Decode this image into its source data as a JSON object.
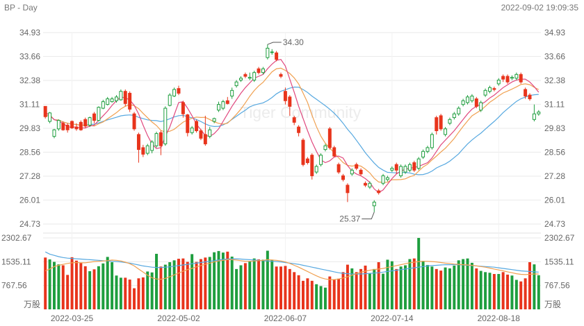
{
  "header": {
    "title": "BP - Day",
    "timestamp": "2022-09-02 19:09:35"
  },
  "watermark": "Tiger Community",
  "colors": {
    "up": "#1e9e3e",
    "down": "#e8341c",
    "ma5": "#e0487e",
    "ma10": "#f0a050",
    "ma20": "#56a8e0",
    "vol_avg1": "#f0a050",
    "vol_avg2": "#56a8e0"
  },
  "chart_data": [
    {
      "type": "candlestick",
      "title": "BP - Day",
      "y_ticks": [
        "34.93",
        "33.66",
        "32.38",
        "31.11",
        "29.83",
        "28.56",
        "27.28",
        "26.01",
        "24.73"
      ],
      "ylim": [
        24.73,
        34.93
      ],
      "x_ticks": [
        "2022-03-25",
        "2022-05-02",
        "2022-06-07",
        "2022-07-14",
        "2022-08-18"
      ],
      "x_tick_index": [
        6,
        30,
        54,
        78,
        102
      ],
      "annotations": [
        {
          "text": "34.30",
          "type": "high",
          "index": 50,
          "value": 34.3
        },
        {
          "text": "25.37",
          "type": "low",
          "index": 74,
          "value": 25.37
        }
      ],
      "candles": [
        [
          31.0,
          30.45,
          30.95,
          30.35
        ],
        [
          30.2,
          30.65,
          30.7,
          30.1
        ],
        [
          29.4,
          29.75,
          29.8,
          29.3
        ],
        [
          29.8,
          30.25,
          30.3,
          29.7
        ],
        [
          30.1,
          29.75,
          30.2,
          29.7
        ],
        [
          30.0,
          29.75,
          30.1,
          29.6
        ],
        [
          30.2,
          29.85,
          30.25,
          29.8
        ],
        [
          29.9,
          29.8,
          30.1,
          29.7
        ],
        [
          30.15,
          29.75,
          30.25,
          29.7
        ],
        [
          30.3,
          29.95,
          30.4,
          29.85
        ],
        [
          30.0,
          30.4,
          30.45,
          29.9
        ],
        [
          30.6,
          30.25,
          30.7,
          30.1
        ],
        [
          30.25,
          30.95,
          31.0,
          30.2
        ],
        [
          30.9,
          31.25,
          31.35,
          30.85
        ],
        [
          31.1,
          31.4,
          31.5,
          31.05
        ],
        [
          31.25,
          31.4,
          31.5,
          31.2
        ],
        [
          31.3,
          31.5,
          31.6,
          31.2
        ],
        [
          31.35,
          31.8,
          31.9,
          31.3
        ],
        [
          31.8,
          31.15,
          31.9,
          31.0
        ],
        [
          31.7,
          30.85,
          31.8,
          30.7
        ],
        [
          30.6,
          29.8,
          30.7,
          29.7
        ],
        [
          29.5,
          28.7,
          29.6,
          28.0
        ],
        [
          28.8,
          28.45,
          28.95,
          28.3
        ],
        [
          28.5,
          28.9,
          29.0,
          28.4
        ],
        [
          28.65,
          29.1,
          29.2,
          28.5
        ],
        [
          28.9,
          29.55,
          29.65,
          28.8
        ],
        [
          29.6,
          28.9,
          29.7,
          28.4
        ],
        [
          29.0,
          30.9,
          31.0,
          28.9
        ],
        [
          31.05,
          31.6,
          31.7,
          31.0
        ],
        [
          31.55,
          31.9,
          32.0,
          31.5
        ],
        [
          31.95,
          31.7,
          32.1,
          31.6
        ],
        [
          31.2,
          30.6,
          31.3,
          30.4
        ],
        [
          30.55,
          29.6,
          30.6,
          29.4
        ],
        [
          29.6,
          29.85,
          29.95,
          29.5
        ],
        [
          30.2,
          29.7,
          30.3,
          29.6
        ],
        [
          29.7,
          29.3,
          29.8,
          29.2
        ],
        [
          29.5,
          29.0,
          30.5,
          28.9
        ],
        [
          29.4,
          29.75,
          29.9,
          29.3
        ],
        [
          30.2,
          30.35,
          30.4,
          30.1
        ],
        [
          30.8,
          31.1,
          31.25,
          30.7
        ],
        [
          30.9,
          31.25,
          31.35,
          30.8
        ],
        [
          31.3,
          31.15,
          31.5,
          31.1
        ],
        [
          31.55,
          31.85,
          32.0,
          31.4
        ],
        [
          32.1,
          32.3,
          32.4,
          32.0
        ],
        [
          32.4,
          32.5,
          32.6,
          32.3
        ],
        [
          32.7,
          32.6,
          32.8,
          32.5
        ],
        [
          32.5,
          32.55,
          32.8,
          32.4
        ],
        [
          32.4,
          32.8,
          32.9,
          32.3
        ],
        [
          33.0,
          32.8,
          33.1,
          32.7
        ],
        [
          32.8,
          33.0,
          33.1,
          32.7
        ],
        [
          33.6,
          34.1,
          34.3,
          33.5
        ],
        [
          33.9,
          33.9,
          34.05,
          33.75
        ],
        [
          33.85,
          33.5,
          33.95,
          33.4
        ],
        [
          32.7,
          32.6,
          32.8,
          32.5
        ],
        [
          31.8,
          31.3,
          32.0,
          31.1
        ],
        [
          31.5,
          31.0,
          31.6,
          30.5
        ],
        [
          30.4,
          30.15,
          30.5,
          30.0
        ],
        [
          29.9,
          29.6,
          30.0,
          29.4
        ],
        [
          29.2,
          27.9,
          29.3,
          27.8
        ],
        [
          28.2,
          28.0,
          28.3,
          27.9
        ],
        [
          28.4,
          27.3,
          28.5,
          27.1
        ],
        [
          27.5,
          27.8,
          27.9,
          27.4
        ],
        [
          27.9,
          28.4,
          28.5,
          27.8
        ],
        [
          28.7,
          28.9,
          29.0,
          28.6
        ],
        [
          29.8,
          28.8,
          29.9,
          28.7
        ],
        [
          28.8,
          28.35,
          28.9,
          28.3
        ],
        [
          27.9,
          27.5,
          28.0,
          27.4
        ],
        [
          27.3,
          27.1,
          27.4,
          27.0
        ],
        [
          26.8,
          26.4,
          26.9,
          25.9
        ],
        [
          27.4,
          27.6,
          27.7,
          27.3
        ],
        [
          27.9,
          27.7,
          28.0,
          27.6
        ],
        [
          27.6,
          27.4,
          27.7,
          27.3
        ],
        [
          26.9,
          26.8,
          27.0,
          26.7
        ],
        [
          26.7,
          26.9,
          27.0,
          26.6
        ],
        [
          25.7,
          25.9,
          26.0,
          25.37
        ],
        [
          26.5,
          26.4,
          26.6,
          26.3
        ],
        [
          26.9,
          27.3,
          27.4,
          26.8
        ],
        [
          27.1,
          27.2,
          27.3,
          27.0
        ],
        [
          27.6,
          27.7,
          27.8,
          27.5
        ],
        [
          27.9,
          27.6,
          28.0,
          27.4
        ],
        [
          27.3,
          27.8,
          27.9,
          27.2
        ],
        [
          27.5,
          27.8,
          27.9,
          27.4
        ],
        [
          27.6,
          27.9,
          28.0,
          27.5
        ],
        [
          28.0,
          27.6,
          28.1,
          27.5
        ],
        [
          27.7,
          28.2,
          28.3,
          27.6
        ],
        [
          28.3,
          28.6,
          28.7,
          28.2
        ],
        [
          28.6,
          28.8,
          28.9,
          28.5
        ],
        [
          28.8,
          29.5,
          29.6,
          28.7
        ],
        [
          30.4,
          29.7,
          30.5,
          29.5
        ],
        [
          30.5,
          29.8,
          30.6,
          29.7
        ],
        [
          29.5,
          29.8,
          29.9,
          29.4
        ],
        [
          30.1,
          30.3,
          30.4,
          30.0
        ],
        [
          30.4,
          30.6,
          30.7,
          30.3
        ],
        [
          30.6,
          30.9,
          31.0,
          30.5
        ],
        [
          31.1,
          31.3,
          31.4,
          31.0
        ],
        [
          31.2,
          31.5,
          31.6,
          31.1
        ],
        [
          31.3,
          31.55,
          31.65,
          31.2
        ],
        [
          31.4,
          31.0,
          31.5,
          30.9
        ],
        [
          30.8,
          31.2,
          31.3,
          30.7
        ],
        [
          31.6,
          31.85,
          31.95,
          31.5
        ],
        [
          31.8,
          32.0,
          32.1,
          31.7
        ],
        [
          31.95,
          31.9,
          32.05,
          31.8
        ],
        [
          32.2,
          32.4,
          32.5,
          32.1
        ],
        [
          32.6,
          32.45,
          32.7,
          32.3
        ],
        [
          32.6,
          32.3,
          32.7,
          32.2
        ],
        [
          32.5,
          32.55,
          32.65,
          32.4
        ],
        [
          32.5,
          32.7,
          32.8,
          32.4
        ],
        [
          32.7,
          32.3,
          32.8,
          32.2
        ],
        [
          31.9,
          31.55,
          32.0,
          31.4
        ],
        [
          31.6,
          31.4,
          31.7,
          31.3
        ],
        [
          30.3,
          30.6,
          31.1,
          30.2
        ],
        [
          30.6,
          30.7,
          30.8,
          30.5
        ]
      ],
      "ma5": [
        30.7,
        30.5,
        30.3,
        30.2,
        30.1,
        29.9,
        29.9,
        29.9,
        29.85,
        29.85,
        29.95,
        30.0,
        30.25,
        30.5,
        30.75,
        31.05,
        31.3,
        31.5,
        31.45,
        31.35,
        31.05,
        30.6,
        30.0,
        29.45,
        29.0,
        28.75,
        28.8,
        29.4,
        29.9,
        30.55,
        31.2,
        31.25,
        30.9,
        30.5,
        30.05,
        29.75,
        29.45,
        29.4,
        29.55,
        29.8,
        30.2,
        30.6,
        31.0,
        31.35,
        31.7,
        32.0,
        32.25,
        32.5,
        32.6,
        32.7,
        33.0,
        33.25,
        33.45,
        33.5,
        33.15,
        32.45,
        31.75,
        31.0,
        30.35,
        29.7,
        29.1,
        28.6,
        28.15,
        28.0,
        28.1,
        28.3,
        28.35,
        28.25,
        27.85,
        27.55,
        27.4,
        27.3,
        27.15,
        26.95,
        26.6,
        26.4,
        26.55,
        26.85,
        27.15,
        27.4,
        27.55,
        27.65,
        27.7,
        27.75,
        27.8,
        27.9,
        28.0,
        28.25,
        28.6,
        28.95,
        29.2,
        29.45,
        29.7,
        30.0,
        30.3,
        30.6,
        30.85,
        31.0,
        31.1,
        31.25,
        31.45,
        31.6,
        31.8,
        32.0,
        32.15,
        32.3,
        32.4,
        32.45,
        32.45,
        32.3,
        32.05,
        31.75
      ]
    },
    {
      "type": "bar",
      "title": "",
      "y_ticks": [
        "2302.67",
        "1535.11",
        "767.56"
      ],
      "ylim": [
        0,
        2302.67
      ],
      "unit": "万股",
      "volumes": [
        1670,
        1610,
        1530,
        1450,
        1420,
        1110,
        1680,
        1570,
        1490,
        1390,
        1230,
        1290,
        1390,
        1480,
        1690,
        1520,
        1090,
        1020,
        1020,
        960,
        680,
        1000,
        1030,
        1220,
        1190,
        1790,
        1380,
        1440,
        1520,
        1580,
        1630,
        1640,
        1530,
        1780,
        1530,
        1620,
        1670,
        1690,
        1840,
        1880,
        1830,
        1860,
        1700,
        1300,
        1420,
        1490,
        1540,
        1640,
        1610,
        1600,
        1890,
        1600,
        1380,
        1380,
        1400,
        1300,
        1200,
        1100,
        920,
        1000,
        920,
        810,
        750,
        700,
        1060,
        950,
        990,
        1200,
        1440,
        1320,
        1200,
        1300,
        1410,
        1150,
        1300,
        1520,
        1150,
        1600,
        1550,
        1300,
        1380,
        1420,
        1620,
        1640,
        2302,
        1560,
        1430,
        1380,
        1300,
        1250,
        1350,
        1320,
        1410,
        1580,
        1620,
        1640,
        1500,
        1320,
        1240,
        1200,
        1180,
        1140,
        1140,
        1200,
        1120,
        1090,
        950,
        900,
        1000,
        1520,
        1450,
        1100
      ],
      "avg1": [
        1240,
        1300,
        1380,
        1420,
        1450,
        1480,
        1500,
        1510,
        1500,
        1500,
        1520,
        1540,
        1550,
        1560,
        1570,
        1590,
        1580,
        1560,
        1520,
        1470,
        1400,
        1300,
        1200,
        1100,
        1020,
        980,
        970,
        1000,
        1050,
        1110,
        1170,
        1230,
        1280,
        1320,
        1370,
        1410,
        1450,
        1490,
        1530,
        1560,
        1580,
        1600,
        1600,
        1590,
        1570,
        1550,
        1550,
        1560,
        1570,
        1580,
        1600,
        1590,
        1580,
        1560,
        1530,
        1480,
        1420,
        1360,
        1290,
        1220,
        1150,
        1080,
        1020,
        980,
        960,
        960,
        980,
        1010,
        1050,
        1100,
        1150,
        1200,
        1230,
        1260,
        1280,
        1300,
        1320,
        1350,
        1380,
        1410,
        1440,
        1470,
        1500,
        1520,
        1540,
        1550,
        1550,
        1540,
        1530,
        1510,
        1490,
        1480,
        1460,
        1450,
        1440,
        1430,
        1420,
        1400,
        1380,
        1360,
        1330,
        1300,
        1270,
        1240,
        1210,
        1180,
        1150,
        1130,
        1120,
        1130,
        1140,
        1140
      ],
      "avg2": [
        1850,
        1780,
        1740,
        1700,
        1670,
        1650,
        1640,
        1630,
        1620,
        1610,
        1600,
        1590,
        1580,
        1570,
        1560,
        1550,
        1540,
        1530,
        1510,
        1490,
        1460,
        1430,
        1400,
        1380,
        1360,
        1350,
        1350,
        1360,
        1370,
        1390,
        1410,
        1430,
        1450,
        1470,
        1490,
        1510,
        1530,
        1550,
        1570,
        1590,
        1610,
        1620,
        1630,
        1630,
        1620,
        1610,
        1600,
        1590,
        1580,
        1570,
        1560,
        1550,
        1540,
        1530,
        1510,
        1490,
        1470,
        1450,
        1420,
        1390,
        1360,
        1330,
        1300,
        1270,
        1240,
        1210,
        1180,
        1160,
        1150,
        1140,
        1140,
        1140,
        1150,
        1160,
        1170,
        1180,
        1200,
        1220,
        1240,
        1260,
        1280,
        1300,
        1320,
        1340,
        1360,
        1380,
        1400,
        1410,
        1420,
        1430,
        1440,
        1440,
        1440,
        1440,
        1430,
        1420,
        1410,
        1400,
        1390,
        1380,
        1370,
        1360,
        1340,
        1320,
        1300,
        1280,
        1260,
        1240,
        1230,
        1220,
        1210,
        1200
      ]
    }
  ]
}
